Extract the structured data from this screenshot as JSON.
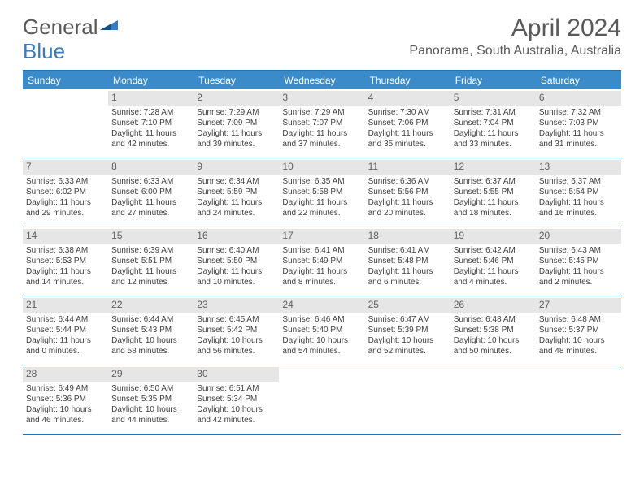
{
  "logo": {
    "part1": "General",
    "part2": "Blue"
  },
  "title": "April 2024",
  "location": "Panorama, South Australia, Australia",
  "colors": {
    "header_bg": "#3a8bc9",
    "border": "#2f6fa8",
    "daynum_bg": "#e6e6e6",
    "text": "#404040",
    "logo_blue": "#3a7bbf"
  },
  "weekdays": [
    "Sunday",
    "Monday",
    "Tuesday",
    "Wednesday",
    "Thursday",
    "Friday",
    "Saturday"
  ],
  "weeks": [
    [
      {
        "num": "",
        "sunrise": "",
        "sunset": "",
        "day1": "",
        "day2": ""
      },
      {
        "num": "1",
        "sunrise": "Sunrise: 7:28 AM",
        "sunset": "Sunset: 7:10 PM",
        "day1": "Daylight: 11 hours",
        "day2": "and 42 minutes."
      },
      {
        "num": "2",
        "sunrise": "Sunrise: 7:29 AM",
        "sunset": "Sunset: 7:09 PM",
        "day1": "Daylight: 11 hours",
        "day2": "and 39 minutes."
      },
      {
        "num": "3",
        "sunrise": "Sunrise: 7:29 AM",
        "sunset": "Sunset: 7:07 PM",
        "day1": "Daylight: 11 hours",
        "day2": "and 37 minutes."
      },
      {
        "num": "4",
        "sunrise": "Sunrise: 7:30 AM",
        "sunset": "Sunset: 7:06 PM",
        "day1": "Daylight: 11 hours",
        "day2": "and 35 minutes."
      },
      {
        "num": "5",
        "sunrise": "Sunrise: 7:31 AM",
        "sunset": "Sunset: 7:04 PM",
        "day1": "Daylight: 11 hours",
        "day2": "and 33 minutes."
      },
      {
        "num": "6",
        "sunrise": "Sunrise: 7:32 AM",
        "sunset": "Sunset: 7:03 PM",
        "day1": "Daylight: 11 hours",
        "day2": "and 31 minutes."
      }
    ],
    [
      {
        "num": "7",
        "sunrise": "Sunrise: 6:33 AM",
        "sunset": "Sunset: 6:02 PM",
        "day1": "Daylight: 11 hours",
        "day2": "and 29 minutes."
      },
      {
        "num": "8",
        "sunrise": "Sunrise: 6:33 AM",
        "sunset": "Sunset: 6:00 PM",
        "day1": "Daylight: 11 hours",
        "day2": "and 27 minutes."
      },
      {
        "num": "9",
        "sunrise": "Sunrise: 6:34 AM",
        "sunset": "Sunset: 5:59 PM",
        "day1": "Daylight: 11 hours",
        "day2": "and 24 minutes."
      },
      {
        "num": "10",
        "sunrise": "Sunrise: 6:35 AM",
        "sunset": "Sunset: 5:58 PM",
        "day1": "Daylight: 11 hours",
        "day2": "and 22 minutes."
      },
      {
        "num": "11",
        "sunrise": "Sunrise: 6:36 AM",
        "sunset": "Sunset: 5:56 PM",
        "day1": "Daylight: 11 hours",
        "day2": "and 20 minutes."
      },
      {
        "num": "12",
        "sunrise": "Sunrise: 6:37 AM",
        "sunset": "Sunset: 5:55 PM",
        "day1": "Daylight: 11 hours",
        "day2": "and 18 minutes."
      },
      {
        "num": "13",
        "sunrise": "Sunrise: 6:37 AM",
        "sunset": "Sunset: 5:54 PM",
        "day1": "Daylight: 11 hours",
        "day2": "and 16 minutes."
      }
    ],
    [
      {
        "num": "14",
        "sunrise": "Sunrise: 6:38 AM",
        "sunset": "Sunset: 5:53 PM",
        "day1": "Daylight: 11 hours",
        "day2": "and 14 minutes."
      },
      {
        "num": "15",
        "sunrise": "Sunrise: 6:39 AM",
        "sunset": "Sunset: 5:51 PM",
        "day1": "Daylight: 11 hours",
        "day2": "and 12 minutes."
      },
      {
        "num": "16",
        "sunrise": "Sunrise: 6:40 AM",
        "sunset": "Sunset: 5:50 PM",
        "day1": "Daylight: 11 hours",
        "day2": "and 10 minutes."
      },
      {
        "num": "17",
        "sunrise": "Sunrise: 6:41 AM",
        "sunset": "Sunset: 5:49 PM",
        "day1": "Daylight: 11 hours",
        "day2": "and 8 minutes."
      },
      {
        "num": "18",
        "sunrise": "Sunrise: 6:41 AM",
        "sunset": "Sunset: 5:48 PM",
        "day1": "Daylight: 11 hours",
        "day2": "and 6 minutes."
      },
      {
        "num": "19",
        "sunrise": "Sunrise: 6:42 AM",
        "sunset": "Sunset: 5:46 PM",
        "day1": "Daylight: 11 hours",
        "day2": "and 4 minutes."
      },
      {
        "num": "20",
        "sunrise": "Sunrise: 6:43 AM",
        "sunset": "Sunset: 5:45 PM",
        "day1": "Daylight: 11 hours",
        "day2": "and 2 minutes."
      }
    ],
    [
      {
        "num": "21",
        "sunrise": "Sunrise: 6:44 AM",
        "sunset": "Sunset: 5:44 PM",
        "day1": "Daylight: 11 hours",
        "day2": "and 0 minutes."
      },
      {
        "num": "22",
        "sunrise": "Sunrise: 6:44 AM",
        "sunset": "Sunset: 5:43 PM",
        "day1": "Daylight: 10 hours",
        "day2": "and 58 minutes."
      },
      {
        "num": "23",
        "sunrise": "Sunrise: 6:45 AM",
        "sunset": "Sunset: 5:42 PM",
        "day1": "Daylight: 10 hours",
        "day2": "and 56 minutes."
      },
      {
        "num": "24",
        "sunrise": "Sunrise: 6:46 AM",
        "sunset": "Sunset: 5:40 PM",
        "day1": "Daylight: 10 hours",
        "day2": "and 54 minutes."
      },
      {
        "num": "25",
        "sunrise": "Sunrise: 6:47 AM",
        "sunset": "Sunset: 5:39 PM",
        "day1": "Daylight: 10 hours",
        "day2": "and 52 minutes."
      },
      {
        "num": "26",
        "sunrise": "Sunrise: 6:48 AM",
        "sunset": "Sunset: 5:38 PM",
        "day1": "Daylight: 10 hours",
        "day2": "and 50 minutes."
      },
      {
        "num": "27",
        "sunrise": "Sunrise: 6:48 AM",
        "sunset": "Sunset: 5:37 PM",
        "day1": "Daylight: 10 hours",
        "day2": "and 48 minutes."
      }
    ],
    [
      {
        "num": "28",
        "sunrise": "Sunrise: 6:49 AM",
        "sunset": "Sunset: 5:36 PM",
        "day1": "Daylight: 10 hours",
        "day2": "and 46 minutes."
      },
      {
        "num": "29",
        "sunrise": "Sunrise: 6:50 AM",
        "sunset": "Sunset: 5:35 PM",
        "day1": "Daylight: 10 hours",
        "day2": "and 44 minutes."
      },
      {
        "num": "30",
        "sunrise": "Sunrise: 6:51 AM",
        "sunset": "Sunset: 5:34 PM",
        "day1": "Daylight: 10 hours",
        "day2": "and 42 minutes."
      },
      {
        "num": "",
        "sunrise": "",
        "sunset": "",
        "day1": "",
        "day2": ""
      },
      {
        "num": "",
        "sunrise": "",
        "sunset": "",
        "day1": "",
        "day2": ""
      },
      {
        "num": "",
        "sunrise": "",
        "sunset": "",
        "day1": "",
        "day2": ""
      },
      {
        "num": "",
        "sunrise": "",
        "sunset": "",
        "day1": "",
        "day2": ""
      }
    ]
  ]
}
